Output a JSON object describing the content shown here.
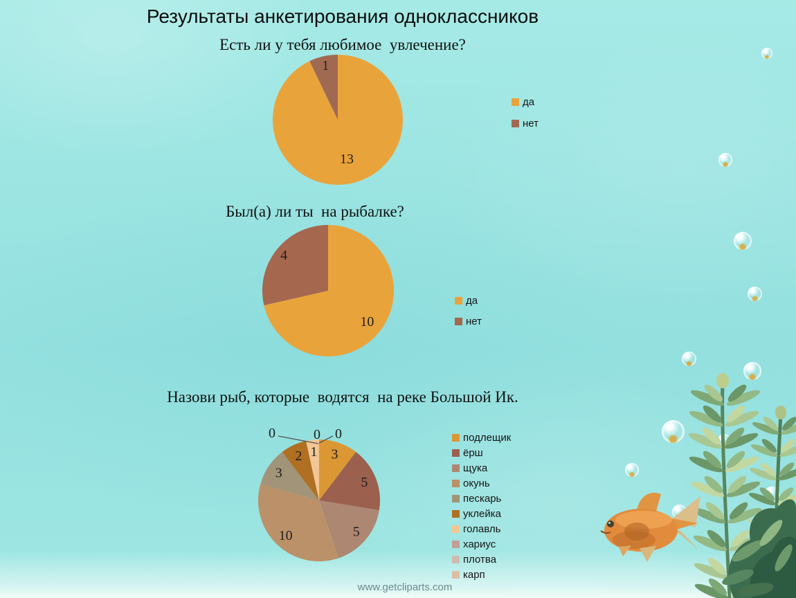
{
  "slide": {
    "title": "Результаты анкетирования одноклассников",
    "watermark": "www.getcliparts.com"
  },
  "colors": {
    "background": "#96E1E0",
    "title_text": "#0d0d0d",
    "label_text": "#1e1e1e",
    "watermark_text": "#6C8A90"
  },
  "chart_data": [
    {
      "type": "pie",
      "title": "Есть ли у тебя любимое  увлечение?",
      "categories": [
        "да",
        "нет"
      ],
      "values": [
        13,
        1
      ],
      "colors": [
        "#E9A33B",
        "#A06A52"
      ],
      "legend_position": "right",
      "start_angle_deg": 0,
      "direction": "clockwise"
    },
    {
      "type": "pie",
      "title": "Был(а) ли ты  на рыбалке?",
      "categories": [
        "да",
        "нет"
      ],
      "values": [
        10,
        4
      ],
      "colors": [
        "#E9A33B",
        "#A5674E"
      ],
      "legend_position": "right",
      "start_angle_deg": 0,
      "direction": "clockwise"
    },
    {
      "type": "pie",
      "title": "Назови рыб, которые  водятся  на реке Большой Ик.",
      "categories": [
        "подлещик",
        "ёрш",
        "щука",
        "окунь",
        "пескарь",
        "уклейка",
        "голавль",
        "хариус",
        "плотва",
        "карп"
      ],
      "values": [
        3,
        5,
        5,
        10,
        3,
        2,
        1,
        0,
        0,
        0
      ],
      "colors": [
        "#DB9733",
        "#9B604E",
        "#AE8773",
        "#BB9169",
        "#A29478",
        "#B06F22",
        "#F3C795",
        "#C2A096",
        "#D0BBB0",
        "#DDBEA4"
      ],
      "legend_position": "right",
      "start_angle_deg": 0,
      "direction": "clockwise"
    }
  ]
}
